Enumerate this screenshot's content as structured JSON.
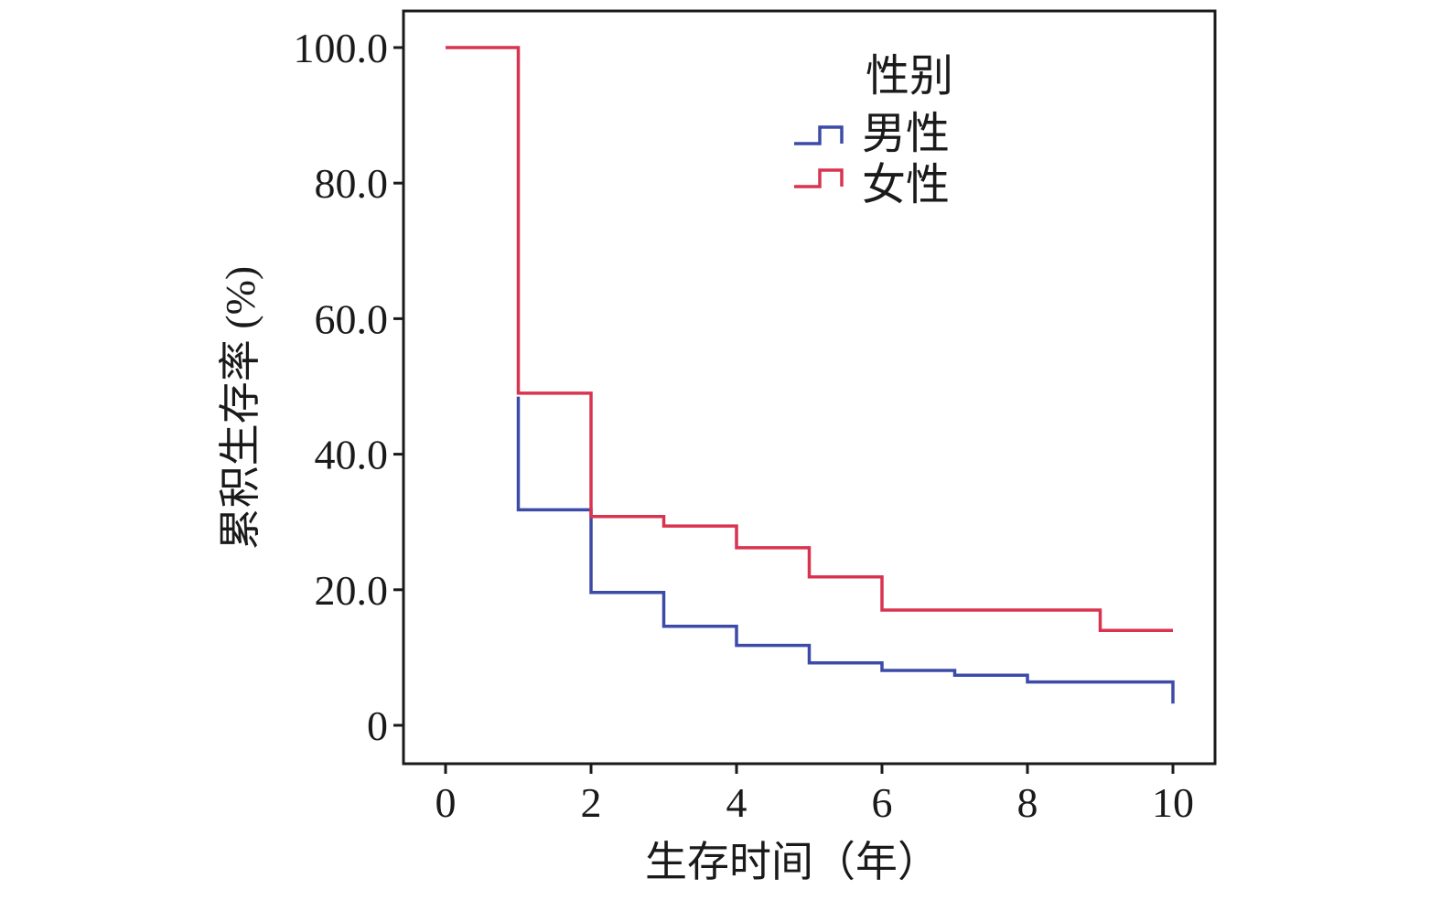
{
  "chart_data": {
    "type": "line",
    "step": true,
    "xlabel": "生存时间（年）",
    "ylabel": "累积生存率 (%)",
    "xlim": [
      0,
      10
    ],
    "ylim": [
      0,
      100
    ],
    "x_ticks": [
      0,
      2,
      4,
      6,
      8,
      10
    ],
    "x_tick_labels": [
      "0",
      "2",
      "4",
      "6",
      "8",
      "10"
    ],
    "y_ticks": [
      0,
      20,
      40,
      60,
      80,
      100
    ],
    "y_tick_labels": [
      "0",
      "20.0",
      "40.0",
      "60.0",
      "80.0",
      "100.0"
    ],
    "grid": false,
    "legend": {
      "title": "性别",
      "placement": "top-right"
    },
    "series": [
      {
        "name": "男性",
        "color": "#3d4ba8",
        "x": [
          1,
          1,
          2,
          2,
          3,
          3,
          4,
          4,
          5,
          5,
          6,
          6,
          7,
          7,
          8,
          8,
          10,
          10
        ],
        "y": [
          48.5,
          31.8,
          31.8,
          19.6,
          19.6,
          14.6,
          14.6,
          11.8,
          11.8,
          9.2,
          9.2,
          8.1,
          8.1,
          7.4,
          7.4,
          6.4,
          6.4,
          3.2
        ]
      },
      {
        "name": "女性",
        "color": "#d9344f",
        "x": [
          0,
          1,
          1,
          2,
          2,
          3,
          3,
          4,
          4,
          5,
          5,
          6,
          6,
          9,
          9,
          10
        ],
        "y": [
          100,
          100,
          49.0,
          49.0,
          30.8,
          30.8,
          29.4,
          29.4,
          26.2,
          26.2,
          21.9,
          21.9,
          17.0,
          17.0,
          14.0,
          14.0
        ]
      }
    ]
  }
}
